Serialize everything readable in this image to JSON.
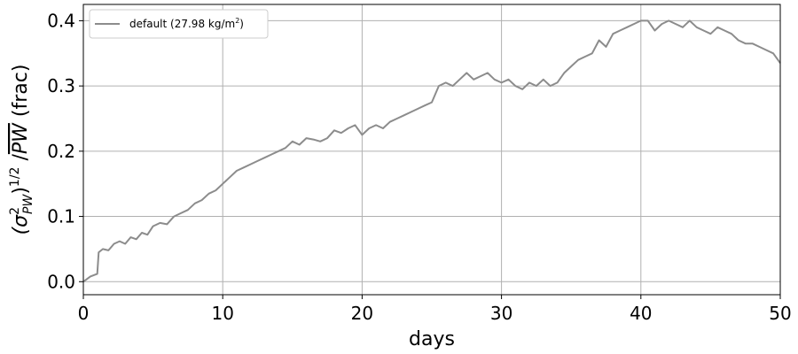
{
  "chart_data": {
    "type": "line",
    "xlabel": "days",
    "ylabel_parts": {
      "open": "(σ",
      "sup": "2",
      "sub": "PW",
      "close": ")",
      "power": "1/2",
      "slash": " /",
      "bar": "PW",
      "unit": " (frac)"
    },
    "xlim": [
      0,
      50
    ],
    "ylim": [
      -0.02,
      0.425
    ],
    "xticks": [
      0,
      10,
      20,
      30,
      40,
      50
    ],
    "yticks": [
      0.0,
      0.1,
      0.2,
      0.3,
      0.4
    ],
    "xtick_labels": [
      "0",
      "10",
      "20",
      "30",
      "40",
      "50"
    ],
    "ytick_labels": [
      "0.0",
      "0.1",
      "0.2",
      "0.3",
      "0.4"
    ],
    "grid": true,
    "legend_position": "top-left",
    "series": [
      {
        "name": "default (27.98 kg/m",
        "name_sup": "2",
        "name_close": ")",
        "color": "#8c8c8c",
        "x": [
          0,
          0.5,
          1.0,
          1.1,
          1.4,
          1.8,
          2.2,
          2.6,
          3.0,
          3.4,
          3.8,
          4.2,
          4.6,
          5.0,
          5.5,
          6.0,
          6.5,
          7.0,
          7.5,
          8.0,
          8.5,
          9.0,
          9.5,
          10.0,
          10.5,
          11.0,
          11.5,
          12.0,
          12.5,
          13.0,
          13.5,
          14.0,
          14.5,
          15.0,
          15.5,
          16.0,
          16.5,
          17.0,
          17.5,
          18.0,
          18.5,
          19.0,
          19.5,
          20.0,
          20.5,
          21.0,
          21.5,
          22.0,
          22.5,
          23.0,
          23.5,
          24.0,
          24.5,
          25.0,
          25.5,
          26.0,
          26.5,
          27.0,
          27.5,
          28.0,
          28.5,
          29.0,
          29.5,
          30.0,
          30.5,
          31.0,
          31.5,
          32.0,
          32.5,
          33.0,
          33.5,
          34.0,
          34.5,
          35.0,
          35.5,
          36.0,
          36.5,
          37.0,
          37.5,
          38.0,
          38.5,
          39.0,
          39.5,
          40.0,
          40.5,
          41.0,
          41.5,
          42.0,
          42.5,
          43.0,
          43.5,
          44.0,
          44.5,
          45.0,
          45.5,
          46.0,
          46.5,
          47.0,
          47.5,
          48.0,
          48.5,
          49.0,
          49.5,
          50.0
        ],
        "y": [
          0.0,
          0.008,
          0.012,
          0.045,
          0.05,
          0.048,
          0.058,
          0.062,
          0.058,
          0.068,
          0.065,
          0.075,
          0.072,
          0.085,
          0.09,
          0.088,
          0.1,
          0.105,
          0.11,
          0.12,
          0.125,
          0.135,
          0.14,
          0.15,
          0.16,
          0.17,
          0.175,
          0.18,
          0.185,
          0.19,
          0.195,
          0.2,
          0.205,
          0.215,
          0.21,
          0.22,
          0.218,
          0.215,
          0.22,
          0.232,
          0.228,
          0.235,
          0.24,
          0.225,
          0.235,
          0.24,
          0.235,
          0.245,
          0.25,
          0.255,
          0.26,
          0.265,
          0.27,
          0.275,
          0.3,
          0.305,
          0.3,
          0.31,
          0.32,
          0.31,
          0.315,
          0.32,
          0.31,
          0.305,
          0.31,
          0.3,
          0.295,
          0.305,
          0.3,
          0.31,
          0.3,
          0.305,
          0.32,
          0.33,
          0.34,
          0.345,
          0.35,
          0.37,
          0.36,
          0.38,
          0.385,
          0.39,
          0.395,
          0.4,
          0.4,
          0.385,
          0.395,
          0.4,
          0.395,
          0.39,
          0.4,
          0.39,
          0.385,
          0.38,
          0.39,
          0.385,
          0.38,
          0.37,
          0.365,
          0.365,
          0.36,
          0.355,
          0.35,
          0.335
        ]
      }
    ]
  }
}
